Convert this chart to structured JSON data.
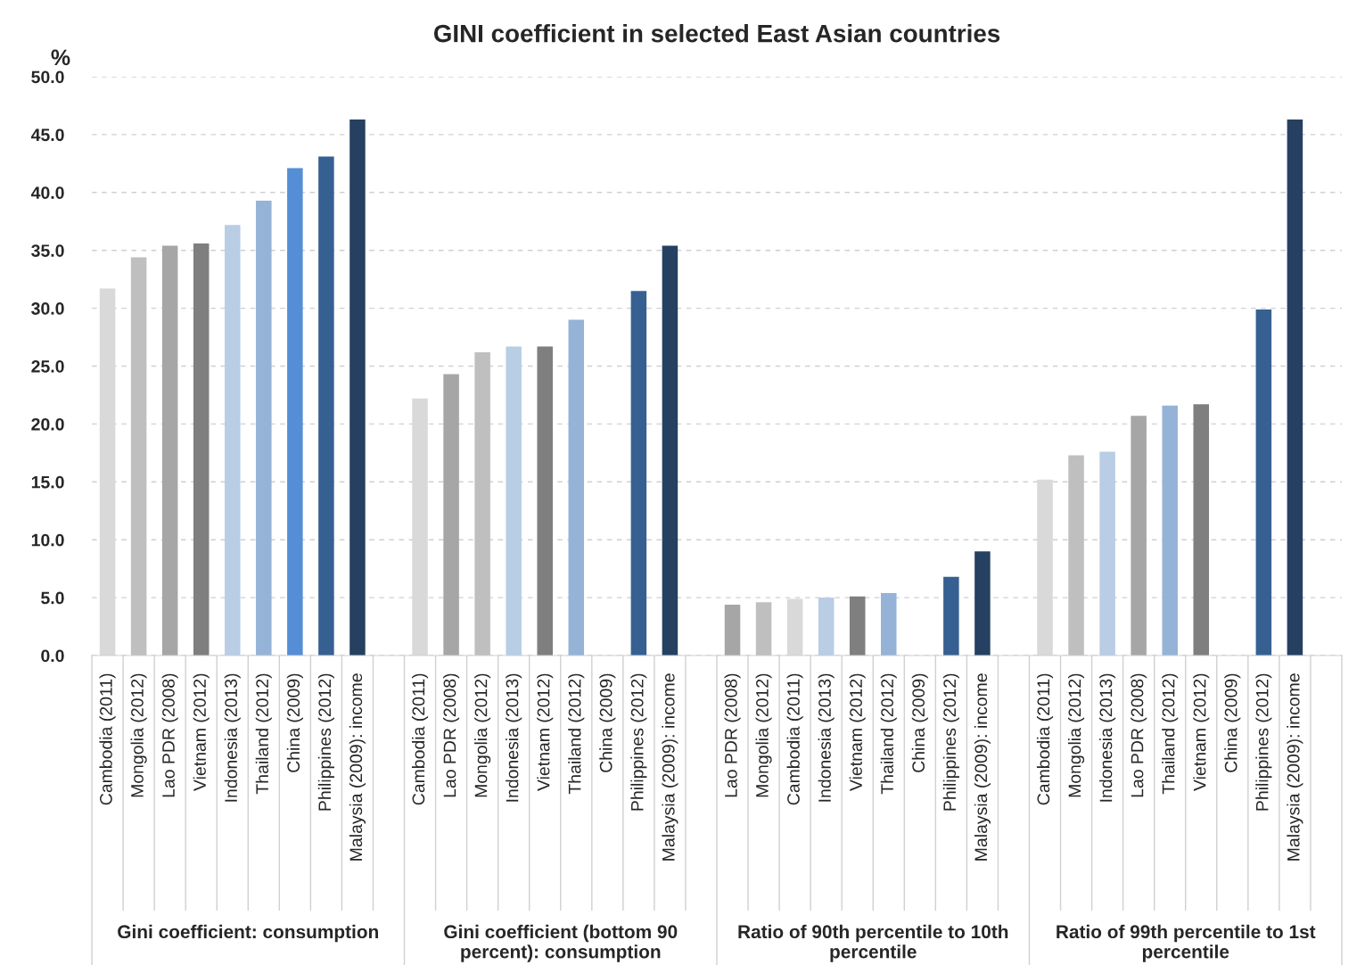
{
  "chart_data": {
    "type": "bar",
    "title": "GINI coefficient in selected East Asian countries",
    "ylabel": "%",
    "categories": [
      "Cambodia (2011)",
      "Mongolia (2012)",
      "Lao PDR (2008)",
      "Vietnam (2012)",
      "Indonesia (2013)",
      "Thailand (2012)",
      "China (2009)",
      "Philippines (2012)",
      "Malaysia (2009): income",
      null,
      "Cambodia (2011)",
      "Lao PDR (2008)",
      "Mongolia (2012)",
      "Indonesia (2013)",
      "Vietnam (2012)",
      "Thailand (2012)",
      "China (2009)",
      "Philippines (2012)",
      "Malaysia (2009): income",
      null,
      "Lao PDR (2008)",
      "Mongolia (2012)",
      "Cambodia (2011)",
      "Indonesia (2013)",
      "Vietnam (2012)",
      "Thailand (2012)",
      "China (2009)",
      "Philippines (2012)",
      "Malaysia (2009): income",
      null,
      "Cambodia (2011)",
      "Mongolia (2012)",
      "Indonesia (2013)",
      "Lao PDR (2008)",
      "Thailand (2012)",
      "Vietnam (2012)",
      "China (2009)",
      "Philippines (2012)",
      "Malaysia (2009): income",
      null
    ],
    "values": [
      31.7,
      34.4,
      35.4,
      35.6,
      37.2,
      39.3,
      42.1,
      43.1,
      46.3,
      null,
      22.2,
      24.3,
      26.2,
      26.7,
      26.7,
      29.0,
      null,
      31.5,
      35.4,
      null,
      4.4,
      4.6,
      4.9,
      5.0,
      5.1,
      5.4,
      null,
      6.8,
      9.0,
      null,
      15.2,
      17.3,
      17.6,
      20.7,
      21.6,
      21.7,
      null,
      29.9,
      46.3,
      null
    ],
    "colors": [
      "#d9d9d9",
      "#bfbfbf",
      "#a6a6a6",
      "#7f7f7f",
      "#b9cde5",
      "#95b3d7",
      "#558ed5",
      "#376092",
      "#254061",
      null,
      "#d9d9d9",
      "#a6a6a6",
      "#bfbfbf",
      "#b9cde5",
      "#7f7f7f",
      "#95b3d7",
      null,
      "#376092",
      "#254061",
      null,
      "#a6a6a6",
      "#bfbfbf",
      "#d9d9d9",
      "#b9cde5",
      "#7f7f7f",
      "#95b3d7",
      null,
      "#376092",
      "#254061",
      null,
      "#d9d9d9",
      "#bfbfbf",
      "#b9cde5",
      "#a6a6a6",
      "#95b3d7",
      "#7f7f7f",
      null,
      "#376092",
      "#254061",
      null
    ],
    "annotations": [
      "Gini coefficient: consumption",
      "Gini coefficient (bottom 90 percent): consumption",
      "Ratio of 90th percentile to 10th percentile",
      "Ratio of 99th percentile to 1st percentile"
    ],
    "ylim": [
      0,
      50
    ],
    "yticks": [
      {
        "value": 0,
        "label": "0.0"
      },
      {
        "value": 5,
        "label": "5.0"
      },
      {
        "value": 10,
        "label": "10.0"
      },
      {
        "value": 15,
        "label": "15.0"
      },
      {
        "value": 20,
        "label": "20.0"
      },
      {
        "value": 25,
        "label": "25.0"
      },
      {
        "value": 30,
        "label": "30.0"
      },
      {
        "value": 35,
        "label": "35.0"
      },
      {
        "value": 40,
        "label": "40.0"
      },
      {
        "value": 45,
        "label": "45.0"
      },
      {
        "value": 50,
        "label": "50.0"
      }
    ],
    "grid": "y"
  }
}
